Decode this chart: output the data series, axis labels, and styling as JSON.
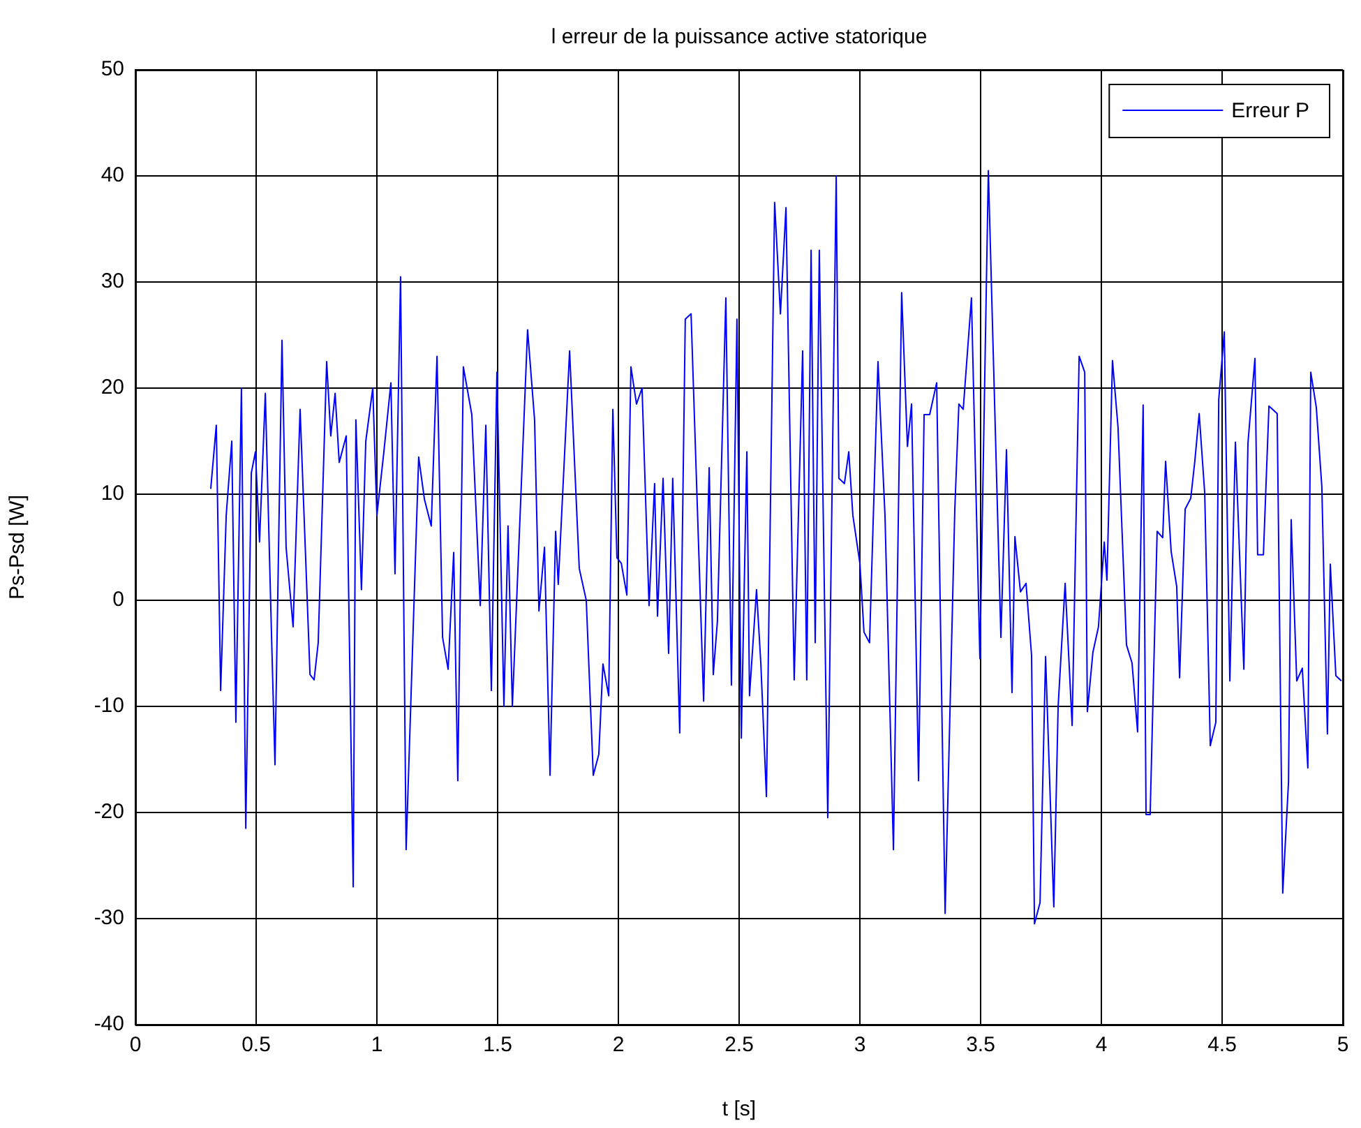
{
  "chart_data": {
    "type": "line",
    "title": "l erreur de la puissance active statorique",
    "xlabel": "t [s]",
    "ylabel": "Ps-Psd [W]",
    "xlim": [
      0,
      5
    ],
    "xticks": [
      0,
      0.5,
      1,
      1.5,
      2,
      2.5,
      3,
      3.5,
      4,
      4.5,
      5
    ],
    "ylim": [
      -40,
      50
    ],
    "yticks": [
      -40,
      -30,
      -20,
      -10,
      0,
      10,
      20,
      30,
      40,
      50
    ],
    "grid": true,
    "legend": "top right",
    "marker": "none",
    "line_style": "solid",
    "x": [
      0.312,
      0.335,
      0.353,
      0.376,
      0.399,
      0.416,
      0.439,
      0.457,
      0.48,
      0.497,
      0.514,
      0.538,
      0.561,
      0.578,
      0.607,
      0.624,
      0.653,
      0.682,
      0.723,
      0.74,
      0.757,
      0.792,
      0.809,
      0.827,
      0.844,
      0.873,
      0.902,
      0.913,
      0.936,
      0.954,
      0.983,
      1.0,
      1.029,
      1.058,
      1.075,
      1.098,
      1.121,
      1.173,
      1.197,
      1.225,
      1.249,
      1.272,
      1.295,
      1.318,
      1.335,
      1.358,
      1.393,
      1.428,
      1.451,
      1.474,
      1.497,
      1.526,
      1.543,
      1.561,
      1.624,
      1.653,
      1.671,
      1.694,
      1.717,
      1.74,
      1.751,
      1.798,
      1.838,
      1.867,
      1.896,
      1.919,
      1.936,
      1.96,
      1.977,
      1.994,
      2.012,
      2.035,
      2.052,
      2.075,
      2.098,
      2.127,
      2.15,
      2.162,
      2.185,
      2.208,
      2.225,
      2.254,
      2.277,
      2.301,
      2.353,
      2.376,
      2.393,
      2.41,
      2.445,
      2.468,
      2.491,
      2.509,
      2.532,
      2.543,
      2.572,
      2.59,
      2.613,
      2.647,
      2.671,
      2.694,
      2.728,
      2.763,
      2.78,
      2.798,
      2.815,
      2.832,
      2.867,
      2.902,
      2.913,
      2.936,
      2.954,
      2.971,
      3.0,
      3.017,
      3.04,
      3.075,
      3.104,
      3.139,
      3.173,
      3.197,
      3.214,
      3.243,
      3.266,
      3.289,
      3.318,
      3.353,
      3.393,
      3.41,
      3.428,
      3.462,
      3.497,
      3.532,
      3.584,
      3.607,
      3.63,
      3.642,
      3.665,
      3.688,
      3.711,
      3.723,
      3.746,
      3.769,
      3.803,
      3.821,
      3.85,
      3.879,
      3.908,
      3.931,
      3.942,
      3.965,
      3.988,
      4.012,
      4.023,
      4.046,
      4.069,
      4.104,
      4.127,
      4.15,
      4.173,
      4.185,
      4.202,
      4.231,
      4.254,
      4.266,
      4.289,
      4.312,
      4.324,
      4.347,
      4.37,
      4.387,
      4.405,
      4.428,
      4.451,
      4.474,
      4.486,
      4.509,
      4.532,
      4.555,
      4.59,
      4.607,
      4.636,
      4.647,
      4.671,
      4.694,
      4.728,
      4.751,
      4.775,
      4.786,
      4.809,
      4.832,
      4.855,
      4.867,
      4.89,
      4.913,
      4.936,
      4.948,
      4.971,
      4.994
    ],
    "series": [
      {
        "name": "Erreur P",
        "color": "#0000ff",
        "values": [
          10.5,
          16.5,
          -8.5,
          8,
          15,
          -11.5,
          20,
          -21.5,
          12,
          14,
          5.5,
          19.5,
          -1,
          -15.5,
          24.5,
          5,
          -2.5,
          18,
          -7,
          -7.5,
          -4,
          22.5,
          15.5,
          19.5,
          13,
          15.5,
          -27,
          17,
          1,
          15,
          20,
          8,
          14,
          20.5,
          2.5,
          30.5,
          -23.5,
          13.5,
          9.5,
          7,
          23,
          -3.5,
          -6.5,
          4.5,
          -17,
          22,
          17.5,
          -0.5,
          16.5,
          -8.5,
          21.5,
          -10,
          7,
          -10,
          25.5,
          17,
          -1,
          5,
          -16.5,
          6.5,
          1.5,
          23.5,
          3,
          0,
          -16.5,
          -14.5,
          -6,
          -9,
          18,
          4,
          3.5,
          0.5,
          22,
          18.5,
          20,
          -0.5,
          11,
          -1.5,
          11.5,
          -5,
          11.5,
          -12.5,
          26.5,
          27,
          -9.5,
          12.5,
          -7,
          -2,
          28.5,
          -8,
          26.5,
          -13,
          14,
          -9,
          1,
          -6,
          -18.5,
          37.5,
          27,
          37,
          -7.5,
          23.5,
          -7.5,
          33,
          -4,
          33,
          -20.5,
          40,
          11.5,
          11,
          14,
          8,
          3.5,
          -3,
          -4,
          22.5,
          8,
          -23.5,
          29,
          14.5,
          18.5,
          -17,
          17.5,
          17.5,
          20.5,
          -29.5,
          8.5,
          18.5,
          18,
          28.5,
          -5.5,
          40.5,
          -3.5,
          14.2,
          -8.7,
          6,
          0.8,
          1.6,
          -5.2,
          -30.5,
          -28.5,
          -5.3,
          -28.9,
          -10,
          1.6,
          -11.8,
          23,
          21.5,
          -10.5,
          -4.9,
          -2.5,
          5.5,
          1.9,
          22.6,
          16.3,
          -4.2,
          -5.9,
          -12.4,
          18.4,
          -20.2,
          -20.2,
          6.5,
          5.9,
          13.1,
          4.6,
          1.3,
          -7.3,
          8.6,
          9.6,
          13.1,
          17.6,
          10.1,
          -13.7,
          -11.5,
          18.9,
          25.3,
          -7.6,
          14.9,
          -6.5,
          14.8,
          22.8,
          4.3,
          4.3,
          18.3,
          17.6,
          -27.6,
          -17.1,
          7.6,
          -7.6,
          -6.4,
          -15.8,
          21.5,
          18.2,
          10.7,
          -12.6,
          3.4,
          -7.1,
          -7.6
        ]
      }
    ]
  }
}
